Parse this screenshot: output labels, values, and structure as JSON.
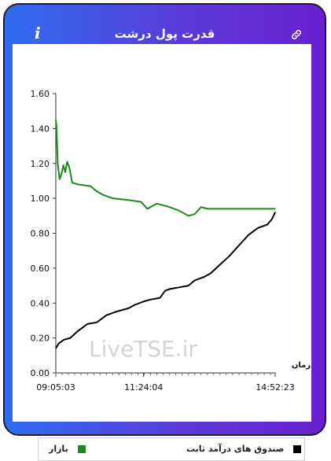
{
  "header": {
    "title": "قدرت پول درشت",
    "info_icon": "info-icon",
    "link_icon": "link-icon"
  },
  "watermark": "LiveTSE.ir",
  "chart_data": {
    "type": "line",
    "xlabel": "زمان",
    "x_ticks": [
      "09:05:03",
      "11:24:04",
      "14:52:23"
    ],
    "y_ticks": [
      "0.00",
      "0.20",
      "0.40",
      "0.60",
      "0.80",
      "1.00",
      "1.20",
      "1.40",
      "1.60"
    ],
    "ylim": [
      0,
      1.6
    ],
    "x_range": [
      "09:05:03",
      "14:52:23"
    ],
    "grid": false,
    "legend": "bottom",
    "series": [
      {
        "name": "بازار",
        "color": "#1a8a1a",
        "points": [
          [
            "09:05:03",
            1.45
          ],
          [
            "09:06:00",
            1.42
          ],
          [
            "09:08:00",
            1.2
          ],
          [
            "09:11:00",
            1.11
          ],
          [
            "09:14:00",
            1.14
          ],
          [
            "09:17:00",
            1.19
          ],
          [
            "09:20:00",
            1.15
          ],
          [
            "09:23:00",
            1.21
          ],
          [
            "09:27:00",
            1.17
          ],
          [
            "09:31:00",
            1.09
          ],
          [
            "09:40:00",
            1.08
          ],
          [
            "10:00:00",
            1.07
          ],
          [
            "10:10:00",
            1.04
          ],
          [
            "10:20:00",
            1.02
          ],
          [
            "10:35:00",
            1.0
          ],
          [
            "11:00:00",
            0.99
          ],
          [
            "11:20:00",
            0.98
          ],
          [
            "11:30:00",
            0.94
          ],
          [
            "11:40:00",
            0.96
          ],
          [
            "11:45:00",
            0.97
          ],
          [
            "12:05:00",
            0.95
          ],
          [
            "12:20:00",
            0.93
          ],
          [
            "12:35:00",
            0.9
          ],
          [
            "12:45:00",
            0.91
          ],
          [
            "12:55:00",
            0.95
          ],
          [
            "13:05:00",
            0.94
          ],
          [
            "14:52:23",
            0.94
          ]
        ]
      },
      {
        "name": "صندوق های درآمد ثابت",
        "color": "#000000",
        "points": [
          [
            "09:05:03",
            0.14
          ],
          [
            "09:10:00",
            0.17
          ],
          [
            "09:18:00",
            0.19
          ],
          [
            "09:28:00",
            0.2
          ],
          [
            "09:40:00",
            0.24
          ],
          [
            "09:55:00",
            0.28
          ],
          [
            "10:10:00",
            0.29
          ],
          [
            "10:25:00",
            0.33
          ],
          [
            "10:40:00",
            0.35
          ],
          [
            "11:00:00",
            0.37
          ],
          [
            "11:10:00",
            0.39
          ],
          [
            "11:25:00",
            0.41
          ],
          [
            "11:35:00",
            0.42
          ],
          [
            "11:50:00",
            0.43
          ],
          [
            "11:58:00",
            0.47
          ],
          [
            "12:05:00",
            0.48
          ],
          [
            "12:20:00",
            0.49
          ],
          [
            "12:35:00",
            0.5
          ],
          [
            "12:45:00",
            0.53
          ],
          [
            "13:00:00",
            0.55
          ],
          [
            "13:10:00",
            0.57
          ],
          [
            "13:25:00",
            0.62
          ],
          [
            "13:40:00",
            0.67
          ],
          [
            "13:55:00",
            0.73
          ],
          [
            "14:10:00",
            0.79
          ],
          [
            "14:25:00",
            0.83
          ],
          [
            "14:40:00",
            0.85
          ],
          [
            "14:47:00",
            0.88
          ],
          [
            "14:52:23",
            0.92
          ]
        ]
      }
    ]
  }
}
